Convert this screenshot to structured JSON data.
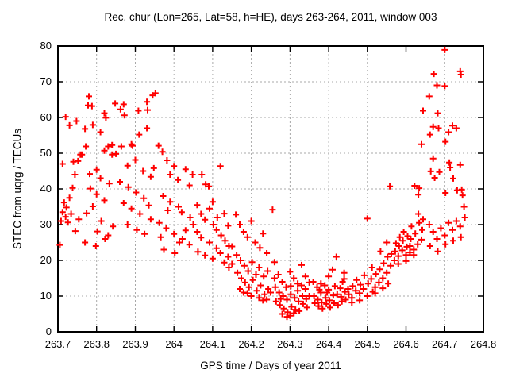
{
  "chart_data": {
    "type": "scatter",
    "title": "Rec. chur (Lon=265, Lat=58, h=HE), days 263-264, 2011, window 003",
    "xlabel": "GPS time / Days of year 2011",
    "ylabel": "STEC from uqrg / TECUs",
    "xlim": [
      263.7,
      264.8
    ],
    "ylim": [
      0,
      80
    ],
    "xticks": [
      263.7,
      263.8,
      263.9,
      264.0,
      264.1,
      264.2,
      264.3,
      264.4,
      264.5,
      264.6,
      264.7,
      264.8
    ],
    "xtick_labels": [
      "263.7",
      "263.8",
      "263.9",
      "264",
      "264.1",
      "264.2",
      "264.3",
      "264.4",
      "264.5",
      "264.6",
      "264.7",
      "264.8"
    ],
    "yticks": [
      0,
      10,
      20,
      30,
      40,
      50,
      60,
      70,
      80
    ],
    "ytick_labels": [
      "0",
      "10",
      "20",
      "30",
      "40",
      "50",
      "60",
      "70",
      "80"
    ],
    "grid": true,
    "legend": "none",
    "marker": "plus",
    "marker_color": "#ff0000",
    "grid_color": "#a8a8a8",
    "border_color": "#000000",
    "points": [
      [
        263.705,
        24.3
      ],
      [
        263.708,
        31.0
      ],
      [
        263.712,
        33.5
      ],
      [
        263.716,
        36.2
      ],
      [
        263.72,
        32.2
      ],
      [
        263.722,
        34.8
      ],
      [
        263.726,
        30.6
      ],
      [
        263.73,
        37.5
      ],
      [
        263.734,
        33.0
      ],
      [
        263.738,
        40.3
      ],
      [
        263.74,
        47.6
      ],
      [
        263.744,
        44.0
      ],
      [
        263.748,
        59.0
      ],
      [
        263.752,
        47.8
      ],
      [
        263.754,
        31.5
      ],
      [
        263.758,
        49.6
      ],
      [
        263.72,
        60.2
      ],
      [
        263.73,
        57.8
      ],
      [
        263.712,
        47.0
      ],
      [
        263.745,
        28.2
      ],
      [
        263.78,
        65.9
      ],
      [
        263.778,
        63.4
      ],
      [
        263.788,
        63.2
      ],
      [
        263.77,
        56.8
      ],
      [
        263.79,
        57.9
      ],
      [
        263.81,
        55.9
      ],
      [
        263.772,
        51.9
      ],
      [
        263.762,
        49.6
      ],
      [
        263.82,
        61.2
      ],
      [
        263.824,
        59.9
      ],
      [
        263.84,
        52.3
      ],
      [
        263.82,
        50.7
      ],
      [
        263.84,
        49.6
      ],
      [
        263.83,
        51.9
      ],
      [
        263.8,
        45.4
      ],
      [
        263.782,
        44.2
      ],
      [
        263.81,
        43.0
      ],
      [
        263.833,
        41.5
      ],
      [
        263.784,
        40.1
      ],
      [
        263.8,
        38.5
      ],
      [
        263.82,
        36.8
      ],
      [
        263.79,
        35.1
      ],
      [
        263.774,
        33.2
      ],
      [
        263.812,
        31.0
      ],
      [
        263.842,
        29.5
      ],
      [
        263.802,
        28.1
      ],
      [
        263.83,
        27.0
      ],
      [
        263.848,
        63.9
      ],
      [
        263.85,
        49.8
      ],
      [
        263.77,
        25.0
      ],
      [
        263.798,
        24.0
      ],
      [
        263.822,
        26.0
      ],
      [
        263.87,
        63.7
      ],
      [
        263.862,
        62.3
      ],
      [
        263.872,
        60.6
      ],
      [
        263.908,
        61.9
      ],
      [
        263.93,
        64.4
      ],
      [
        263.932,
        62.1
      ],
      [
        263.89,
        52.5
      ],
      [
        263.893,
        52.1
      ],
      [
        263.864,
        51.9
      ],
      [
        263.93,
        57.0
      ],
      [
        263.91,
        55.2
      ],
      [
        263.9,
        48.1
      ],
      [
        263.88,
        46.5
      ],
      [
        263.92,
        45.0
      ],
      [
        263.94,
        43.4
      ],
      [
        263.86,
        42.0
      ],
      [
        263.882,
        40.5
      ],
      [
        263.902,
        39.0
      ],
      [
        263.922,
        37.4
      ],
      [
        263.87,
        36.0
      ],
      [
        263.89,
        34.5
      ],
      [
        263.912,
        33.0
      ],
      [
        263.94,
        31.5
      ],
      [
        263.88,
        30.0
      ],
      [
        263.904,
        28.5
      ],
      [
        263.924,
        27.4
      ],
      [
        263.945,
        66.2
      ],
      [
        263.952,
        66.8
      ],
      [
        263.948,
        45.8
      ],
      [
        263.935,
        35.4
      ],
      [
        263.96,
        52.1
      ],
      [
        263.97,
        50.4
      ],
      [
        263.982,
        48.0
      ],
      [
        264.0,
        46.4
      ],
      [
        263.99,
        44.0
      ],
      [
        264.01,
        42.5
      ],
      [
        264.03,
        45.5
      ],
      [
        264.04,
        41.0
      ],
      [
        263.972,
        38.0
      ],
      [
        263.99,
        36.4
      ],
      [
        264.012,
        35.0
      ],
      [
        264.02,
        33.5
      ],
      [
        264.042,
        32.0
      ],
      [
        263.962,
        30.5
      ],
      [
        263.98,
        29.0
      ],
      [
        264.0,
        27.4
      ],
      [
        264.022,
        26.0
      ],
      [
        264.04,
        24.4
      ],
      [
        263.974,
        23.0
      ],
      [
        264.002,
        22.0
      ],
      [
        264.03,
        28.4
      ],
      [
        264.048,
        44.0
      ],
      [
        264.05,
        30.0
      ],
      [
        264.014,
        25.0
      ],
      [
        263.984,
        34.0
      ],
      [
        263.966,
        26.5
      ],
      [
        264.06,
        35.5
      ],
      [
        264.072,
        44.0
      ],
      [
        264.082,
        41.3
      ],
      [
        264.09,
        40.7
      ],
      [
        264.07,
        33.0
      ],
      [
        264.08,
        31.4
      ],
      [
        264.1,
        36.4
      ],
      [
        264.102,
        30.0
      ],
      [
        264.11,
        28.5
      ],
      [
        264.122,
        27.0
      ],
      [
        264.13,
        33.1
      ],
      [
        264.132,
        25.5
      ],
      [
        264.14,
        29.7
      ],
      [
        264.142,
        24.0
      ],
      [
        264.06,
        28.0
      ],
      [
        264.07,
        26.4
      ],
      [
        264.092,
        25.0
      ],
      [
        264.11,
        23.4
      ],
      [
        264.12,
        22.0
      ],
      [
        264.14,
        21.0
      ],
      [
        264.062,
        22.4
      ],
      [
        264.08,
        21.4
      ],
      [
        264.1,
        20.5
      ],
      [
        264.13,
        19.4
      ],
      [
        264.15,
        23.9
      ],
      [
        264.15,
        19.0
      ],
      [
        264.12,
        46.4
      ],
      [
        264.092,
        34.5
      ],
      [
        264.112,
        32.0
      ],
      [
        264.142,
        18.0
      ],
      [
        264.16,
        32.8
      ],
      [
        264.17,
        30.0
      ],
      [
        264.18,
        28.0
      ],
      [
        264.19,
        26.5
      ],
      [
        264.2,
        31.0
      ],
      [
        264.21,
        25.0
      ],
      [
        264.222,
        23.5
      ],
      [
        264.23,
        27.5
      ],
      [
        264.24,
        22.0
      ],
      [
        264.162,
        21.5
      ],
      [
        264.172,
        20.0
      ],
      [
        264.182,
        18.5
      ],
      [
        264.192,
        17.0
      ],
      [
        264.202,
        19.5
      ],
      [
        264.212,
        16.0
      ],
      [
        264.22,
        18.0
      ],
      [
        264.232,
        15.5
      ],
      [
        264.242,
        17.0
      ],
      [
        264.164,
        16.5
      ],
      [
        264.174,
        15.0
      ],
      [
        264.184,
        13.8
      ],
      [
        264.194,
        12.5
      ],
      [
        264.204,
        14.5
      ],
      [
        264.214,
        11.5
      ],
      [
        264.224,
        13.0
      ],
      [
        264.234,
        10.5
      ],
      [
        264.244,
        12.0
      ],
      [
        264.18,
        11.0
      ],
      [
        264.2,
        10.0
      ],
      [
        264.22,
        9.5
      ],
      [
        264.24,
        9.0
      ],
      [
        264.17,
        12.0
      ],
      [
        264.19,
        10.8
      ],
      [
        264.23,
        8.8
      ],
      [
        264.25,
        11.0
      ],
      [
        264.255,
        34.2
      ],
      [
        264.26,
        19.5
      ],
      [
        264.27,
        16.0
      ],
      [
        264.28,
        14.0
      ],
      [
        264.29,
        12.5
      ],
      [
        264.3,
        16.8
      ],
      [
        264.31,
        15.0
      ],
      [
        264.32,
        13.5
      ],
      [
        264.33,
        18.7
      ],
      [
        264.34,
        12.0
      ],
      [
        264.262,
        12.5
      ],
      [
        264.272,
        11.0
      ],
      [
        264.282,
        10.0
      ],
      [
        264.292,
        9.0
      ],
      [
        264.302,
        10.5
      ],
      [
        264.312,
        9.5
      ],
      [
        264.322,
        8.5
      ],
      [
        264.332,
        10.0
      ],
      [
        264.342,
        9.2
      ],
      [
        264.264,
        8.5
      ],
      [
        264.274,
        7.5
      ],
      [
        264.284,
        6.5
      ],
      [
        264.294,
        5.5
      ],
      [
        264.304,
        7.0
      ],
      [
        264.314,
        6.2
      ],
      [
        264.324,
        5.8
      ],
      [
        264.334,
        7.8
      ],
      [
        264.344,
        6.8
      ],
      [
        264.28,
        5.0
      ],
      [
        264.3,
        4.5
      ],
      [
        264.292,
        4.2
      ],
      [
        264.31,
        5.2
      ],
      [
        264.276,
        9.2
      ],
      [
        264.33,
        13.0
      ],
      [
        264.34,
        15.5
      ],
      [
        264.26,
        15.0
      ],
      [
        264.32,
        11.5
      ],
      [
        264.35,
        10.0
      ],
      [
        264.35,
        13.8
      ],
      [
        264.302,
        12.8
      ],
      [
        264.36,
        14.0
      ],
      [
        264.37,
        12.5
      ],
      [
        264.38,
        11.0
      ],
      [
        264.39,
        13.0
      ],
      [
        264.4,
        11.8
      ],
      [
        264.41,
        17.4
      ],
      [
        264.42,
        21.0
      ],
      [
        264.422,
        10.5
      ],
      [
        264.43,
        12.2
      ],
      [
        264.44,
        14.8
      ],
      [
        264.362,
        10.0
      ],
      [
        264.372,
        9.0
      ],
      [
        264.382,
        8.2
      ],
      [
        264.392,
        9.5
      ],
      [
        264.402,
        8.8
      ],
      [
        264.412,
        10.2
      ],
      [
        264.432,
        9.8
      ],
      [
        264.442,
        11.2
      ],
      [
        264.364,
        8.0
      ],
      [
        264.374,
        7.2
      ],
      [
        264.384,
        6.5
      ],
      [
        264.394,
        7.8
      ],
      [
        264.404,
        6.8
      ],
      [
        264.414,
        8.0
      ],
      [
        264.424,
        7.5
      ],
      [
        264.434,
        8.5
      ],
      [
        264.444,
        9.0
      ],
      [
        264.38,
        13.5
      ],
      [
        264.4,
        15.5
      ],
      [
        264.44,
        16.5
      ],
      [
        264.376,
        11.8
      ],
      [
        264.396,
        11.0
      ],
      [
        264.416,
        12.8
      ],
      [
        264.436,
        14.0
      ],
      [
        264.45,
        12.0
      ],
      [
        264.452,
        10.5
      ],
      [
        264.46,
        9.5
      ],
      [
        264.462,
        12.8
      ],
      [
        264.47,
        11.5
      ],
      [
        264.472,
        14.5
      ],
      [
        264.48,
        10.8
      ],
      [
        264.482,
        13.2
      ],
      [
        264.49,
        12.0
      ],
      [
        264.492,
        15.8
      ],
      [
        264.5,
        31.7
      ],
      [
        264.502,
        13.5
      ],
      [
        264.5,
        10.0
      ],
      [
        264.51,
        14.8
      ],
      [
        264.512,
        18.0
      ],
      [
        264.52,
        12.5
      ],
      [
        264.522,
        16.2
      ],
      [
        264.53,
        13.8
      ],
      [
        264.532,
        17.5
      ],
      [
        264.54,
        15.0
      ],
      [
        264.542,
        19.2
      ],
      [
        264.55,
        16.5
      ],
      [
        264.552,
        21.0
      ],
      [
        264.46,
        8.2
      ],
      [
        264.48,
        8.8
      ],
      [
        264.52,
        10.8
      ],
      [
        264.54,
        12.2
      ],
      [
        264.534,
        22.5
      ],
      [
        264.55,
        25.0
      ],
      [
        264.514,
        11.2
      ],
      [
        264.554,
        13.5
      ],
      [
        264.558,
        40.7
      ],
      [
        264.56,
        18.5
      ],
      [
        264.57,
        20.0
      ],
      [
        264.572,
        22.5
      ],
      [
        264.58,
        21.2
      ],
      [
        264.582,
        24.0
      ],
      [
        264.59,
        22.8
      ],
      [
        264.592,
        25.5
      ],
      [
        264.6,
        21.5
      ],
      [
        264.602,
        23.8
      ],
      [
        264.61,
        22.2
      ],
      [
        264.612,
        26.0
      ],
      [
        264.62,
        23.0
      ],
      [
        264.622,
        40.9
      ],
      [
        264.63,
        24.5
      ],
      [
        264.632,
        38.4
      ],
      [
        264.634,
        40.2
      ],
      [
        264.64,
        25.8
      ],
      [
        264.642,
        28.5
      ],
      [
        264.64,
        52.5
      ],
      [
        264.562,
        21.8
      ],
      [
        264.574,
        24.8
      ],
      [
        264.584,
        26.5
      ],
      [
        264.594,
        28.0
      ],
      [
        264.604,
        26.8
      ],
      [
        264.614,
        29.5
      ],
      [
        264.624,
        27.5
      ],
      [
        264.634,
        30.5
      ],
      [
        264.644,
        31.5
      ],
      [
        264.62,
        21.5
      ],
      [
        264.6,
        19.8
      ],
      [
        264.58,
        19.0
      ],
      [
        264.644,
        61.9
      ],
      [
        264.632,
        33.0
      ],
      [
        264.61,
        24.0
      ],
      [
        264.7,
        78.9
      ],
      [
        264.672,
        72.2
      ],
      [
        264.74,
        72.9
      ],
      [
        264.742,
        72.0
      ],
      [
        264.68,
        69.0
      ],
      [
        264.7,
        68.8
      ],
      [
        264.66,
        65.9
      ],
      [
        264.682,
        61.2
      ],
      [
        264.67,
        57.4
      ],
      [
        264.684,
        57.0
      ],
      [
        264.72,
        57.7
      ],
      [
        264.73,
        57.0
      ],
      [
        264.71,
        55.9
      ],
      [
        264.662,
        55.2
      ],
      [
        264.702,
        53.2
      ],
      [
        264.67,
        48.5
      ],
      [
        264.712,
        47.4
      ],
      [
        264.714,
        46.0
      ],
      [
        264.74,
        46.7
      ],
      [
        264.664,
        44.9
      ],
      [
        264.686,
        44.7
      ],
      [
        264.674,
        43.1
      ],
      [
        264.722,
        42.9
      ],
      [
        264.702,
        38.9
      ],
      [
        264.732,
        39.6
      ],
      [
        264.744,
        39.8
      ],
      [
        264.746,
        38.2
      ],
      [
        264.66,
        30.0
      ],
      [
        264.67,
        28.0
      ],
      [
        264.68,
        26.0
      ],
      [
        264.69,
        29.0
      ],
      [
        264.7,
        27.0
      ],
      [
        264.71,
        30.5
      ],
      [
        264.72,
        28.5
      ],
      [
        264.73,
        31.0
      ],
      [
        264.74,
        29.5
      ],
      [
        264.662,
        24.0
      ],
      [
        264.682,
        22.5
      ],
      [
        264.702,
        24.5
      ],
      [
        264.722,
        25.5
      ],
      [
        264.742,
        26.5
      ],
      [
        264.75,
        35.0
      ],
      [
        264.752,
        32.0
      ]
    ]
  }
}
